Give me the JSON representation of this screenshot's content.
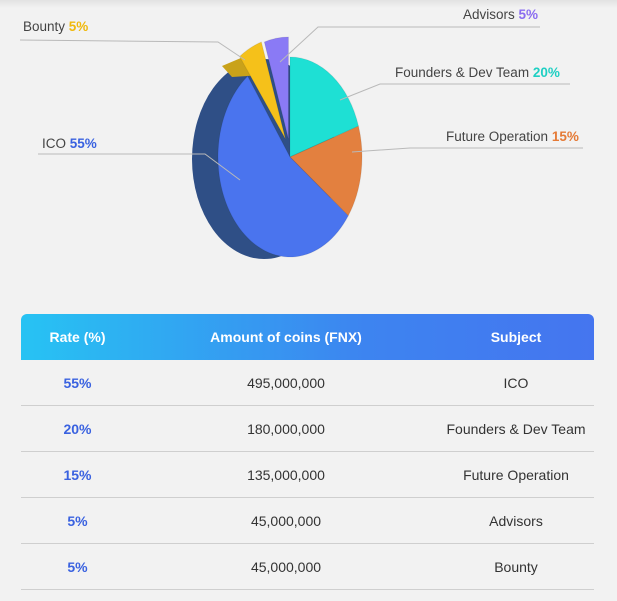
{
  "chart_data": {
    "type": "pie",
    "slices": [
      {
        "label": "ICO",
        "value": 55,
        "display": "55%",
        "color": "#4a74ee",
        "label_color": "#3a62e0"
      },
      {
        "label": "Founders & Dev Team",
        "value": 20,
        "display": "20%",
        "color": "#1ee0d4",
        "label_color": "#1fcfc3"
      },
      {
        "label": "Future Operation",
        "value": 15,
        "display": "15%",
        "color": "#e3803f",
        "label_color": "#e57a36"
      },
      {
        "label": "Advisors",
        "value": 5,
        "display": "5%",
        "color": "#8a7af5",
        "label_color": "#8a6df0"
      },
      {
        "label": "Bounty",
        "value": 5,
        "display": "5%",
        "color": "#f5c11a",
        "label_color": "#f0b90c"
      }
    ]
  },
  "table": {
    "headers": [
      "Rate (%)",
      "Amount of coins (FNX)",
      "Subject"
    ],
    "rows": [
      [
        "55%",
        "495,000,000",
        "ICO"
      ],
      [
        "20%",
        "180,000,000",
        "Founders & Dev Team"
      ],
      [
        "15%",
        "135,000,000",
        "Future Operation"
      ],
      [
        "5%",
        "45,000,000",
        "Advisors"
      ],
      [
        "5%",
        "45,000,000",
        "Bounty"
      ]
    ]
  }
}
